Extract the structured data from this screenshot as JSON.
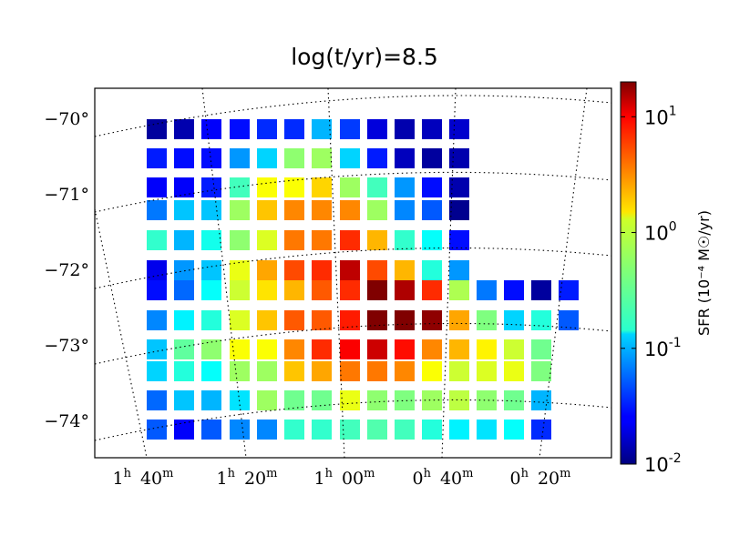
{
  "chart_data": {
    "type": "heatmap",
    "title": "log(t/yr)=8.5",
    "y_ticks": [
      "−70°",
      "−71°",
      "−72°",
      "−73°",
      "−74°"
    ],
    "x_ticks": [
      {
        "h": "1",
        "m": "40"
      },
      {
        "h": "1",
        "m": "20"
      },
      {
        "h": "1",
        "m": "00"
      },
      {
        "h": "0",
        "m": "40"
      },
      {
        "h": "0",
        "m": "20"
      }
    ],
    "colorbar": {
      "label": "SFR (10⁻⁴ M☉/yr)",
      "scale": "log",
      "range": [
        0.01,
        20
      ],
      "ticks": [
        {
          "value": 10,
          "base": "10",
          "exp": "1"
        },
        {
          "value": 1,
          "base": "10",
          "exp": "0"
        },
        {
          "value": 0.1,
          "base": "10",
          "exp": "-1"
        },
        {
          "value": 0.01,
          "base": "10",
          "exp": "-2"
        }
      ]
    },
    "grid": true,
    "note_values": "log10 of SFR per cell in units of 1e-4 Msun/yr, rows listed top (north) to bottom (south), columns listed left (east) to right (west); null = no cell",
    "rows": [
      [
        -1.9,
        -1.85,
        -1.6,
        -1.55,
        -1.45,
        -1.45,
        -1.0,
        -1.4,
        -1.7,
        -1.85,
        -1.8,
        -1.75,
        null,
        null,
        null,
        null
      ],
      [
        -1.5,
        -1.55,
        -1.55,
        -1.1,
        -0.9,
        -0.3,
        -0.25,
        -0.9,
        -1.5,
        -1.8,
        -1.9,
        -1.85,
        null,
        null,
        null,
        null
      ],
      [
        -1.6,
        -1.6,
        -1.5,
        -0.55,
        0.05,
        0.05,
        0.2,
        -0.25,
        -0.55,
        -1.1,
        -1.55,
        -1.85,
        null,
        null,
        null,
        null
      ],
      [
        -1.2,
        -0.95,
        -0.95,
        -0.25,
        0.25,
        0.45,
        0.45,
        0.45,
        -0.25,
        -1.15,
        -1.3,
        -1.95,
        null,
        null,
        null,
        null
      ],
      [
        -0.6,
        -1.0,
        -0.7,
        -0.3,
        -0.05,
        0.5,
        0.5,
        0.75,
        0.3,
        -0.6,
        -0.75,
        -1.55,
        null,
        null,
        null,
        null
      ],
      [
        -1.65,
        -1.1,
        -0.95,
        0.0,
        0.35,
        0.65,
        0.75,
        1.1,
        0.65,
        0.3,
        -0.65,
        -1.1,
        null,
        null,
        null,
        null
      ],
      [
        -1.55,
        -1.25,
        -0.75,
        -0.1,
        0.15,
        0.3,
        0.6,
        0.75,
        1.3,
        1.15,
        0.75,
        -0.2,
        -1.2,
        -1.55,
        -1.9,
        -1.5
      ],
      [
        -1.15,
        -0.8,
        -0.65,
        -0.05,
        0.25,
        0.6,
        0.6,
        0.8,
        1.3,
        1.3,
        1.25,
        0.35,
        -0.35,
        -0.9,
        -0.65,
        -1.3
      ],
      [
        -0.95,
        -0.45,
        -0.3,
        0.05,
        0.05,
        0.45,
        0.75,
        0.9,
        1.05,
        0.85,
        0.45,
        0.3,
        0.1,
        -0.1,
        -0.4,
        null
      ],
      [
        -0.9,
        -0.65,
        -0.75,
        -0.25,
        -0.25,
        0.25,
        0.35,
        0.5,
        0.5,
        0.45,
        0.05,
        -0.1,
        -0.05,
        0.0,
        -0.35,
        null
      ],
      [
        -1.25,
        -0.95,
        -1.0,
        -0.85,
        -0.25,
        -0.4,
        -0.4,
        0.0,
        -0.3,
        -0.35,
        -0.25,
        -0.15,
        -0.3,
        -0.4,
        -1.0,
        null
      ],
      [
        -1.3,
        -1.6,
        -1.3,
        -1.15,
        -1.15,
        -0.6,
        -0.6,
        -0.55,
        -0.5,
        -0.55,
        -0.65,
        -0.8,
        -0.85,
        -0.75,
        -1.45,
        null
      ]
    ]
  }
}
